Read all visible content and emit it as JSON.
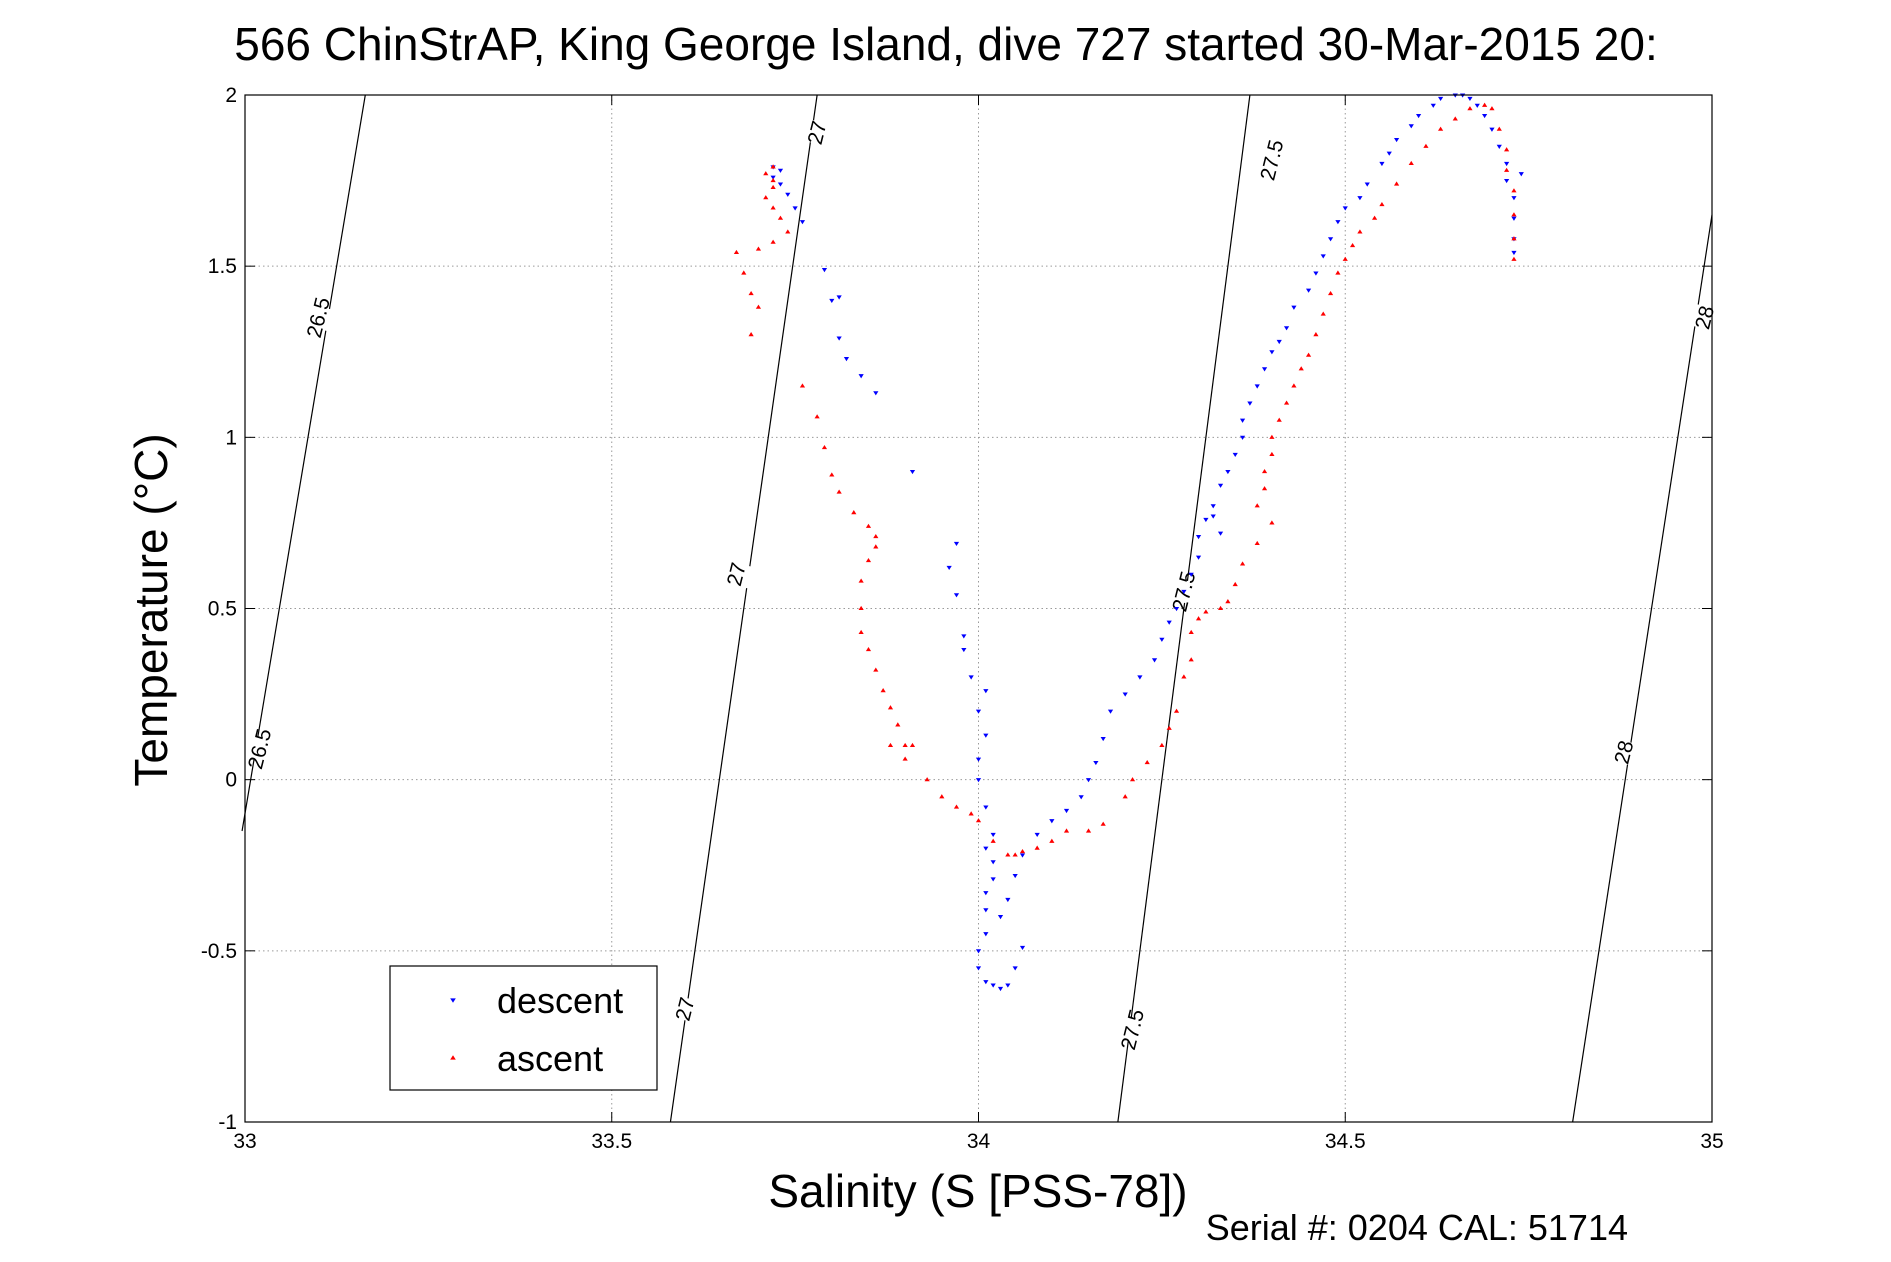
{
  "chart_data": {
    "type": "scatter",
    "title": "566 ChinStrAP, King George Island, dive 727 started 30-Mar-2015 20:",
    "xlabel": "Salinity (S [PSS-78])",
    "ylabel": "Temperature (°C)",
    "xlim": [
      33,
      35
    ],
    "ylim": [
      -1,
      2
    ],
    "x_ticks": [
      33,
      33.5,
      34,
      34.5,
      35
    ],
    "x_tick_labels": [
      "33",
      "33.5",
      "34",
      "34.5",
      "35"
    ],
    "y_ticks": [
      -1,
      -0.5,
      0,
      0.5,
      1,
      1.5,
      2
    ],
    "y_tick_labels": [
      "-1",
      "-0.5",
      "0",
      "0.5",
      "1",
      "1.5",
      "2"
    ],
    "grid": true,
    "legend_position": "bottom-left",
    "density_isopycnals": [
      {
        "value": 26.5,
        "label": "26.5",
        "points": [
          [
            33.164,
            2.0
          ],
          [
            32.996,
            -0.15
          ]
        ]
      },
      {
        "value": 27,
        "label": "27",
        "points": [
          [
            33.78,
            2.0
          ],
          [
            33.58,
            -1.0
          ]
        ]
      },
      {
        "value": 27.5,
        "label": "27.5",
        "points": [
          [
            34.37,
            2.0
          ],
          [
            34.19,
            -1.0
          ]
        ]
      },
      {
        "value": 28,
        "label": "28",
        "points": [
          [
            35.0,
            1.65
          ],
          [
            34.81,
            -1.0
          ]
        ]
      }
    ],
    "isopycnal_labels": [
      {
        "text": "26.5",
        "x": 33.1,
        "y": 1.35
      },
      {
        "text": "26.5",
        "x": 33.02,
        "y": 0.09
      },
      {
        "text": "27",
        "x": 33.78,
        "y": 1.89
      },
      {
        "text": "27",
        "x": 33.67,
        "y": 0.6
      },
      {
        "text": "27",
        "x": 33.6,
        "y": -0.67
      },
      {
        "text": "27.5",
        "x": 34.4,
        "y": 1.81
      },
      {
        "text": "27.5",
        "x": 34.28,
        "y": 0.55
      },
      {
        "text": "27.5",
        "x": 34.21,
        "y": -0.73
      },
      {
        "text": "28",
        "x": 34.99,
        "y": 1.35
      },
      {
        "text": "28",
        "x": 34.88,
        "y": 0.08
      }
    ],
    "series": [
      {
        "name": "descent",
        "color": "#0000ff",
        "marker": "triangle-down",
        "points": [
          [
            33.72,
            1.79
          ],
          [
            33.73,
            1.78
          ],
          [
            33.72,
            1.76
          ],
          [
            33.73,
            1.74
          ],
          [
            33.74,
            1.71
          ],
          [
            33.75,
            1.67
          ],
          [
            33.76,
            1.63
          ],
          [
            33.79,
            1.49
          ],
          [
            33.8,
            1.4
          ],
          [
            33.81,
            1.41
          ],
          [
            33.81,
            1.29
          ],
          [
            33.82,
            1.23
          ],
          [
            33.84,
            1.18
          ],
          [
            33.86,
            1.13
          ],
          [
            33.91,
            0.9
          ],
          [
            33.97,
            0.69
          ],
          [
            33.96,
            0.62
          ],
          [
            33.97,
            0.54
          ],
          [
            33.98,
            0.42
          ],
          [
            33.98,
            0.38
          ],
          [
            33.99,
            0.3
          ],
          [
            34.01,
            0.26
          ],
          [
            34.0,
            0.2
          ],
          [
            34.01,
            0.13
          ],
          [
            34.0,
            0.06
          ],
          [
            34.0,
            0.0
          ],
          [
            34.01,
            -0.08
          ],
          [
            34.02,
            -0.16
          ],
          [
            34.01,
            -0.2
          ],
          [
            34.02,
            -0.24
          ],
          [
            34.02,
            -0.29
          ],
          [
            34.01,
            -0.33
          ],
          [
            34.01,
            -0.38
          ],
          [
            34.01,
            -0.45
          ],
          [
            34.0,
            -0.5
          ],
          [
            34.0,
            -0.55
          ],
          [
            34.01,
            -0.59
          ],
          [
            34.02,
            -0.6
          ],
          [
            34.03,
            -0.61
          ],
          [
            34.04,
            -0.6
          ],
          [
            34.05,
            -0.55
          ],
          [
            34.06,
            -0.49
          ],
          [
            34.03,
            -0.4
          ],
          [
            34.04,
            -0.35
          ],
          [
            34.05,
            -0.28
          ],
          [
            34.06,
            -0.22
          ],
          [
            34.08,
            -0.16
          ],
          [
            34.1,
            -0.12
          ],
          [
            34.12,
            -0.09
          ],
          [
            34.14,
            -0.05
          ],
          [
            34.15,
            0.0
          ],
          [
            34.16,
            0.05
          ],
          [
            34.17,
            0.12
          ],
          [
            34.18,
            0.2
          ],
          [
            34.2,
            0.25
          ],
          [
            34.22,
            0.3
          ],
          [
            34.24,
            0.35
          ],
          [
            34.25,
            0.41
          ],
          [
            34.26,
            0.46
          ],
          [
            34.27,
            0.5
          ],
          [
            34.28,
            0.55
          ],
          [
            34.29,
            0.6
          ],
          [
            34.3,
            0.65
          ],
          [
            34.3,
            0.71
          ],
          [
            34.31,
            0.76
          ],
          [
            34.32,
            0.77
          ],
          [
            34.33,
            0.72
          ],
          [
            34.32,
            0.8
          ],
          [
            34.33,
            0.86
          ],
          [
            34.34,
            0.9
          ],
          [
            34.35,
            0.95
          ],
          [
            34.36,
            1.0
          ],
          [
            34.36,
            1.05
          ],
          [
            34.37,
            1.1
          ],
          [
            34.38,
            1.15
          ],
          [
            34.39,
            1.2
          ],
          [
            34.4,
            1.25
          ],
          [
            34.41,
            1.28
          ],
          [
            34.42,
            1.32
          ],
          [
            34.43,
            1.38
          ],
          [
            34.45,
            1.43
          ],
          [
            34.46,
            1.48
          ],
          [
            34.47,
            1.53
          ],
          [
            34.48,
            1.58
          ],
          [
            34.49,
            1.63
          ],
          [
            34.5,
            1.67
          ],
          [
            34.52,
            1.7
          ],
          [
            34.53,
            1.74
          ],
          [
            34.55,
            1.8
          ],
          [
            34.56,
            1.83
          ],
          [
            34.57,
            1.87
          ],
          [
            34.59,
            1.91
          ],
          [
            34.6,
            1.94
          ],
          [
            34.62,
            1.97
          ],
          [
            34.63,
            1.99
          ],
          [
            34.65,
            2.0
          ],
          [
            34.66,
            2.0
          ],
          [
            34.67,
            1.99
          ],
          [
            34.68,
            1.97
          ],
          [
            34.69,
            1.94
          ],
          [
            34.7,
            1.9
          ],
          [
            34.71,
            1.85
          ],
          [
            34.72,
            1.8
          ],
          [
            34.72,
            1.75
          ],
          [
            34.73,
            1.7
          ],
          [
            34.73,
            1.64
          ],
          [
            34.73,
            1.58
          ],
          [
            34.73,
            1.54
          ],
          [
            34.74,
            1.77
          ]
        ]
      },
      {
        "name": "ascent",
        "color": "#ff0000",
        "marker": "triangle-up",
        "points": [
          [
            33.72,
            1.79
          ],
          [
            33.71,
            1.77
          ],
          [
            33.72,
            1.75
          ],
          [
            33.72,
            1.73
          ],
          [
            33.71,
            1.7
          ],
          [
            33.72,
            1.67
          ],
          [
            33.73,
            1.64
          ],
          [
            33.74,
            1.6
          ],
          [
            33.72,
            1.57
          ],
          [
            33.7,
            1.55
          ],
          [
            33.67,
            1.54
          ],
          [
            33.68,
            1.48
          ],
          [
            33.69,
            1.42
          ],
          [
            33.7,
            1.38
          ],
          [
            33.69,
            1.3
          ],
          [
            33.76,
            1.15
          ],
          [
            33.78,
            1.06
          ],
          [
            33.79,
            0.97
          ],
          [
            33.8,
            0.89
          ],
          [
            33.81,
            0.84
          ],
          [
            33.83,
            0.78
          ],
          [
            33.85,
            0.74
          ],
          [
            33.86,
            0.71
          ],
          [
            33.86,
            0.68
          ],
          [
            33.85,
            0.64
          ],
          [
            33.84,
            0.58
          ],
          [
            33.84,
            0.5
          ],
          [
            33.84,
            0.43
          ],
          [
            33.85,
            0.38
          ],
          [
            33.86,
            0.32
          ],
          [
            33.87,
            0.26
          ],
          [
            33.88,
            0.21
          ],
          [
            33.89,
            0.16
          ],
          [
            33.88,
            0.1
          ],
          [
            33.9,
            0.1
          ],
          [
            33.91,
            0.1
          ],
          [
            33.9,
            0.06
          ],
          [
            33.93,
            0.0
          ],
          [
            33.95,
            -0.05
          ],
          [
            33.97,
            -0.08
          ],
          [
            33.99,
            -0.1
          ],
          [
            34.0,
            -0.12
          ],
          [
            34.02,
            -0.18
          ],
          [
            34.04,
            -0.22
          ],
          [
            34.05,
            -0.22
          ],
          [
            34.06,
            -0.21
          ],
          [
            34.08,
            -0.2
          ],
          [
            34.1,
            -0.18
          ],
          [
            34.12,
            -0.15
          ],
          [
            34.15,
            -0.15
          ],
          [
            34.17,
            -0.13
          ],
          [
            34.2,
            -0.05
          ],
          [
            34.21,
            0.0
          ],
          [
            34.23,
            0.05
          ],
          [
            34.25,
            0.1
          ],
          [
            34.26,
            0.15
          ],
          [
            34.27,
            0.2
          ],
          [
            34.28,
            0.3
          ],
          [
            34.29,
            0.35
          ],
          [
            34.29,
            0.43
          ],
          [
            34.3,
            0.47
          ],
          [
            34.31,
            0.49
          ],
          [
            34.33,
            0.5
          ],
          [
            34.34,
            0.52
          ],
          [
            34.35,
            0.57
          ],
          [
            34.36,
            0.63
          ],
          [
            34.38,
            0.69
          ],
          [
            34.4,
            0.75
          ],
          [
            34.38,
            0.8
          ],
          [
            34.39,
            0.85
          ],
          [
            34.39,
            0.9
          ],
          [
            34.4,
            0.95
          ],
          [
            34.4,
            1.0
          ],
          [
            34.41,
            1.05
          ],
          [
            34.42,
            1.1
          ],
          [
            34.43,
            1.15
          ],
          [
            34.44,
            1.2
          ],
          [
            34.45,
            1.24
          ],
          [
            34.46,
            1.3
          ],
          [
            34.47,
            1.36
          ],
          [
            34.48,
            1.42
          ],
          [
            34.49,
            1.48
          ],
          [
            34.5,
            1.52
          ],
          [
            34.51,
            1.56
          ],
          [
            34.52,
            1.6
          ],
          [
            34.54,
            1.64
          ],
          [
            34.55,
            1.68
          ],
          [
            34.57,
            1.74
          ],
          [
            34.59,
            1.8
          ],
          [
            34.61,
            1.85
          ],
          [
            34.63,
            1.9
          ],
          [
            34.65,
            1.93
          ],
          [
            34.67,
            1.96
          ],
          [
            34.69,
            1.97
          ],
          [
            34.7,
            1.96
          ],
          [
            34.71,
            1.9
          ],
          [
            34.72,
            1.84
          ],
          [
            34.72,
            1.78
          ],
          [
            34.73,
            1.72
          ],
          [
            34.73,
            1.65
          ],
          [
            34.73,
            1.58
          ],
          [
            34.73,
            1.52
          ]
        ]
      }
    ]
  },
  "footer": {
    "serial_text": "Serial #: 0204  CAL: 51714"
  }
}
